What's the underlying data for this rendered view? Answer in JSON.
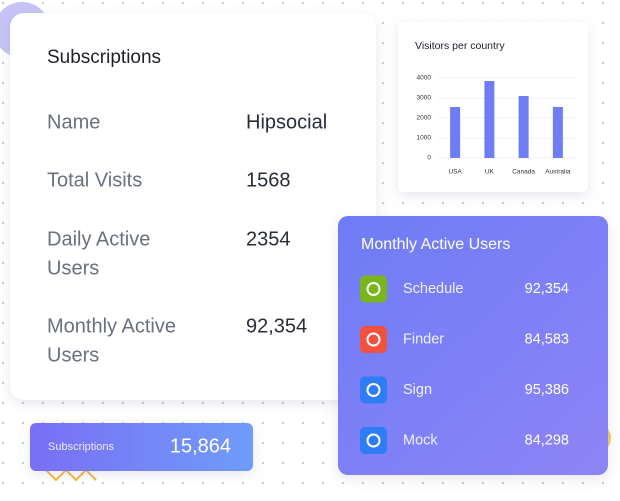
{
  "subscriptions_card": {
    "title": "Subscriptions",
    "rows": [
      {
        "label": [
          "Name"
        ],
        "value": "Hipsocial"
      },
      {
        "label": [
          "Total Visits"
        ],
        "value": "1568"
      },
      {
        "label": [
          "Daily Active",
          "Users"
        ],
        "value": "2354"
      },
      {
        "label": [
          "Monthly Active",
          "Users"
        ],
        "value": "92,354"
      }
    ]
  },
  "chart_data": {
    "type": "bar",
    "title": "Visitors per country",
    "categories": [
      "USA",
      "UK",
      "Canada",
      "Australia"
    ],
    "values": [
      2550,
      3850,
      3100,
      2550
    ],
    "color": "#6f7df5",
    "ylim": [
      0,
      4000
    ],
    "yticks": [
      0,
      1000,
      2000,
      3000,
      4000
    ],
    "grid": true
  },
  "monthly_card": {
    "title": "Monthly Active Users",
    "items": [
      {
        "name": "Schedule",
        "value": "92,354",
        "icon_color": "#79b51c"
      },
      {
        "name": "Finder",
        "value": "84,583",
        "icon_color": "#f0523f"
      },
      {
        "name": "Sign",
        "value": "95,386",
        "icon_color": "#2f7df6"
      },
      {
        "name": "Mock",
        "value": "84,298",
        "icon_color": "#2f7df6"
      }
    ]
  },
  "summary_card": {
    "label": "Subscriptions",
    "value": "15,864"
  }
}
